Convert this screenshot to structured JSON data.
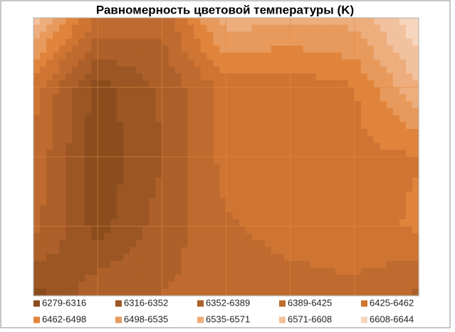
{
  "chart_data": {
    "type": "contour",
    "title": "Равномерность цветовой температуры (K)",
    "z": [
      [
        6590,
        6420,
        6400,
        6560,
        6540,
        6550,
        6640
      ],
      [
        6440,
        6300,
        6360,
        6440,
        6440,
        6460,
        6570
      ],
      [
        6420,
        6290,
        6350,
        6440,
        6450,
        6450,
        6460
      ],
      [
        6400,
        6300,
        6370,
        6420,
        6440,
        6440,
        6470
      ],
      [
        6300,
        6380,
        6390,
        6400,
        6410,
        6420,
        6380
      ]
    ],
    "series": [
      {
        "name": "6279-6316",
        "color": "#8b4d1e"
      },
      {
        "name": "6316-6352",
        "color": "#9c5624"
      },
      {
        "name": "6352-6389",
        "color": "#ad6029"
      },
      {
        "name": "6389-6425",
        "color": "#bf6a2e"
      },
      {
        "name": "6425-6462",
        "color": "#cf7533"
      },
      {
        "name": "6462-6498",
        "color": "#e0843c"
      },
      {
        "name": "6498-6535",
        "color": "#e89a5c"
      },
      {
        "name": "6535-6571",
        "color": "#edad7c"
      },
      {
        "name": "6571-6608",
        "color": "#f2c19d"
      },
      {
        "name": "6608-6644",
        "color": "#f6d6be"
      }
    ],
    "grid": true
  }
}
